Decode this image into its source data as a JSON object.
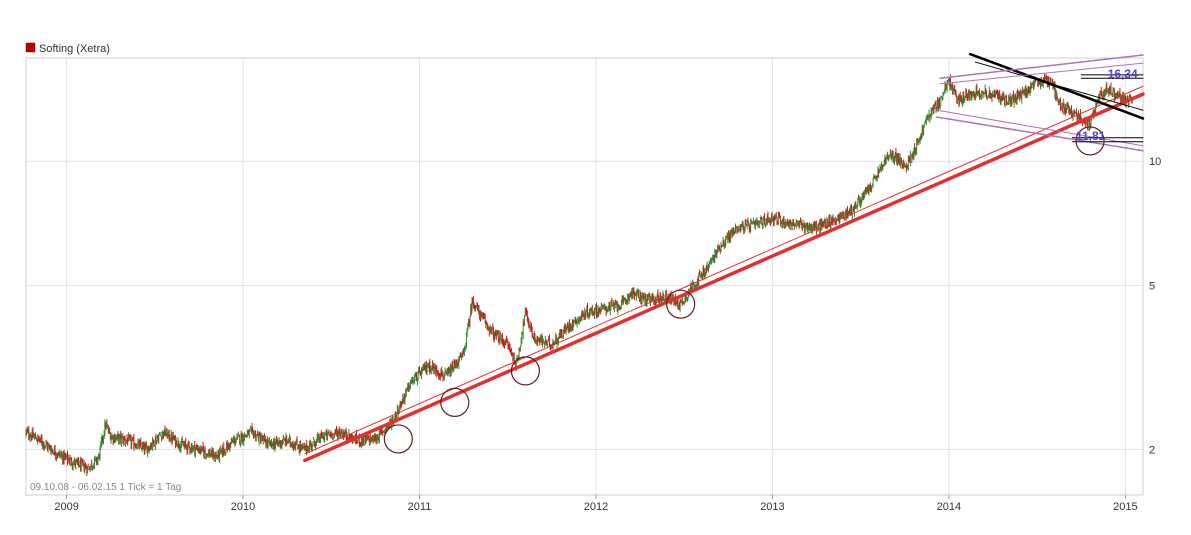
{
  "chart_data": {
    "type": "candlestick",
    "title": "",
    "legend": [
      {
        "name": "Softing (Xetra)",
        "color": "#c00000"
      }
    ],
    "x_axis": {
      "start": 2008.77,
      "end": 2015.1,
      "ticks": [
        {
          "label": "2009",
          "year": 2009.0
        },
        {
          "label": "2010",
          "year": 2010.0
        },
        {
          "label": "2011",
          "year": 2011.0
        },
        {
          "label": "2012",
          "year": 2012.0
        },
        {
          "label": "2013",
          "year": 2013.0
        },
        {
          "label": "2014",
          "year": 2014.0
        },
        {
          "label": "2015",
          "year": 2015.0
        }
      ]
    },
    "y_axis": {
      "scale": "log",
      "min": 1.55,
      "max": 17.8,
      "ticks": [
        {
          "label": "2",
          "value": 2
        },
        {
          "label": "5",
          "value": 5
        },
        {
          "label": "10",
          "value": 10
        }
      ]
    },
    "date_range_label": "09.10.08 - 06.02.15   1 Tick = 1 Tag",
    "price_path": [
      [
        2008.77,
        2.2
      ],
      [
        2008.85,
        2.1
      ],
      [
        2008.95,
        1.95
      ],
      [
        2009.05,
        1.85
      ],
      [
        2009.12,
        1.8
      ],
      [
        2009.18,
        1.9
      ],
      [
        2009.22,
        2.3
      ],
      [
        2009.25,
        2.15
      ],
      [
        2009.35,
        2.1
      ],
      [
        2009.45,
        2.0
      ],
      [
        2009.55,
        2.2
      ],
      [
        2009.65,
        2.05
      ],
      [
        2009.75,
        2.0
      ],
      [
        2009.85,
        1.92
      ],
      [
        2009.95,
        2.1
      ],
      [
        2010.05,
        2.2
      ],
      [
        2010.15,
        2.05
      ],
      [
        2010.25,
        2.1
      ],
      [
        2010.35,
        2.0
      ],
      [
        2010.45,
        2.15
      ],
      [
        2010.55,
        2.2
      ],
      [
        2010.65,
        2.1
      ],
      [
        2010.75,
        2.12
      ],
      [
        2010.85,
        2.35
      ],
      [
        2010.95,
        2.9
      ],
      [
        2011.05,
        3.2
      ],
      [
        2011.15,
        3.0
      ],
      [
        2011.25,
        3.4
      ],
      [
        2011.3,
        4.6
      ],
      [
        2011.35,
        4.2
      ],
      [
        2011.42,
        3.8
      ],
      [
        2011.5,
        3.6
      ],
      [
        2011.55,
        3.2
      ],
      [
        2011.6,
        4.3
      ],
      [
        2011.65,
        3.7
      ],
      [
        2011.75,
        3.6
      ],
      [
        2011.85,
        4.0
      ],
      [
        2011.95,
        4.3
      ],
      [
        2012.05,
        4.4
      ],
      [
        2012.15,
        4.5
      ],
      [
        2012.2,
        4.8
      ],
      [
        2012.3,
        4.6
      ],
      [
        2012.4,
        4.7
      ],
      [
        2012.48,
        4.5
      ],
      [
        2012.55,
        5.0
      ],
      [
        2012.62,
        5.4
      ],
      [
        2012.7,
        6.2
      ],
      [
        2012.8,
        6.9
      ],
      [
        2012.9,
        7.0
      ],
      [
        2013.0,
        7.3
      ],
      [
        2013.08,
        7.1
      ],
      [
        2013.15,
        7.0
      ],
      [
        2013.25,
        6.9
      ],
      [
        2013.35,
        7.2
      ],
      [
        2013.45,
        7.6
      ],
      [
        2013.55,
        8.6
      ],
      [
        2013.65,
        10.2
      ],
      [
        2013.7,
        10.3
      ],
      [
        2013.75,
        9.6
      ],
      [
        2013.82,
        11.0
      ],
      [
        2013.88,
        12.8
      ],
      [
        2013.95,
        14.0
      ],
      [
        2014.0,
        15.7
      ],
      [
        2014.05,
        14.0
      ],
      [
        2014.15,
        14.8
      ],
      [
        2014.25,
        14.5
      ],
      [
        2014.35,
        14.0
      ],
      [
        2014.42,
        14.6
      ],
      [
        2014.5,
        15.5
      ],
      [
        2014.58,
        15.7
      ],
      [
        2014.62,
        14.0
      ],
      [
        2014.68,
        13.2
      ],
      [
        2014.75,
        12.8
      ],
      [
        2014.8,
        12.2
      ],
      [
        2014.85,
        14.5
      ],
      [
        2014.9,
        14.9
      ],
      [
        2014.95,
        14.5
      ],
      [
        2015.0,
        14.0
      ],
      [
        2015.05,
        14.2
      ],
      [
        2015.08,
        14.1
      ]
    ],
    "annotations": {
      "price_labels": [
        {
          "label": "16,34",
          "year": 2014.9,
          "value": 15.9
        },
        {
          "label": "11,81",
          "year": 2014.72,
          "value": 11.25
        }
      ],
      "support_circles": [
        {
          "year": 2010.88,
          "value": 2.12
        },
        {
          "year": 2011.2,
          "value": 2.6
        },
        {
          "year": 2011.6,
          "value": 3.1
        },
        {
          "year": 2012.48,
          "value": 4.5
        },
        {
          "year": 2014.8,
          "value": 11.2
        }
      ],
      "trend_lines": [
        {
          "color": "#e03030",
          "width": 3.5,
          "from": [
            2010.35,
            1.88
          ],
          "to": [
            2015.1,
            14.55
          ]
        },
        {
          "color": "#e03030",
          "width": 1,
          "from": [
            2010.35,
            1.95
          ],
          "to": [
            2015.1,
            15.2
          ]
        },
        {
          "color": "#000000",
          "width": 2.5,
          "from": [
            2014.12,
            18.2
          ],
          "to": [
            2015.1,
            12.7
          ]
        },
        {
          "color": "#000000",
          "width": 1,
          "from": [
            2014.15,
            17.4
          ],
          "to": [
            2015.1,
            13.3
          ]
        },
        {
          "color": "#b070c0",
          "width": 1.5,
          "from": [
            2013.95,
            15.9
          ],
          "to": [
            2015.1,
            18.1
          ]
        },
        {
          "color": "#b070c0",
          "width": 1,
          "from": [
            2013.95,
            15.4
          ],
          "to": [
            2015.1,
            17.3
          ]
        },
        {
          "color": "#b070c0",
          "width": 1.5,
          "from": [
            2013.93,
            12.8
          ],
          "to": [
            2015.1,
            10.6
          ]
        },
        {
          "color": "#b070c0",
          "width": 1,
          "from": [
            2013.93,
            13.3
          ],
          "to": [
            2015.1,
            10.9
          ]
        },
        {
          "color": "#000000",
          "width": 1,
          "from": [
            2014.75,
            16.2
          ],
          "to": [
            2015.1,
            16.2
          ]
        },
        {
          "color": "#000000",
          "width": 1,
          "from": [
            2014.75,
            15.9
          ],
          "to": [
            2015.1,
            15.9
          ]
        },
        {
          "color": "#000000",
          "width": 1,
          "from": [
            2014.7,
            11.4
          ],
          "to": [
            2015.1,
            11.4
          ]
        },
        {
          "color": "#000000",
          "width": 1,
          "from": [
            2014.7,
            11.15
          ],
          "to": [
            2015.1,
            11.15
          ]
        }
      ]
    },
    "colors": {
      "up": "#2e8b2e",
      "down": "#c81e1e",
      "grid": "#e2e2e2"
    }
  }
}
